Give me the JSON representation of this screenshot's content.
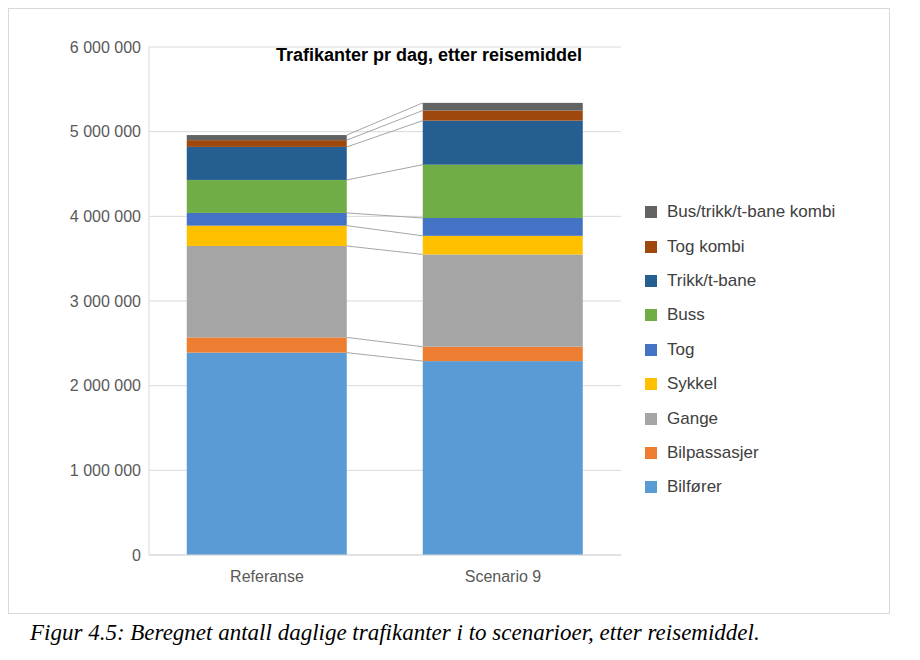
{
  "chart_data": {
    "type": "bar",
    "stacked": true,
    "title": "Trafikanter pr dag, etter reisemiddel",
    "caption": "Figur 4.5: Beregnet antall daglige trafikanter i to scenarioer, etter reisemiddel.",
    "categories": [
      "Referanse",
      "Scenario 9"
    ],
    "series": [
      {
        "name": "Bilfører",
        "color": "#5b9bd5",
        "values": [
          2390000,
          2290000
        ]
      },
      {
        "name": "Bilpassasjer",
        "color": "#ed7d31",
        "values": [
          180000,
          170000
        ]
      },
      {
        "name": "Gange",
        "color": "#a5a5a5",
        "values": [
          1080000,
          1090000
        ]
      },
      {
        "name": "Sykkel",
        "color": "#ffc000",
        "values": [
          240000,
          220000
        ]
      },
      {
        "name": "Tog",
        "color": "#4472c4",
        "values": [
          150000,
          210000
        ]
      },
      {
        "name": "Buss",
        "color": "#70ad47",
        "values": [
          390000,
          630000
        ]
      },
      {
        "name": "Trikk/t-bane",
        "color": "#255e91",
        "values": [
          390000,
          520000
        ]
      },
      {
        "name": "Tog kombi",
        "color": "#9e480e",
        "values": [
          80000,
          120000
        ]
      },
      {
        "name": "Bus/trikk/t-bane kombi",
        "color": "#636363",
        "values": [
          60000,
          90000
        ]
      }
    ],
    "ylim": [
      0,
      6000000
    ],
    "yticks": [
      0,
      {
        "value": 1000000,
        "label": "1 000 000"
      },
      {
        "value": 2000000,
        "label": "2 000 000"
      },
      {
        "value": 3000000,
        "label": "3 000 000"
      },
      {
        "value": 4000000,
        "label": "4 000 000"
      },
      {
        "value": 5000000,
        "label": "5 000 000"
      },
      {
        "value": 6000000,
        "label": "6 000 000"
      }
    ],
    "grid": true,
    "legend": "right"
  }
}
